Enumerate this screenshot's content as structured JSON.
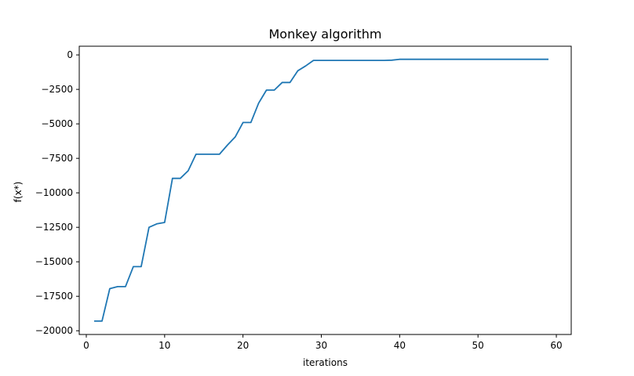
{
  "chart_data": {
    "type": "line",
    "title": "Monkey algorithm",
    "xlabel": "iterations",
    "ylabel": "f(x*)",
    "xlim": [
      -0.9,
      61.9
    ],
    "ylim": [
      -20270,
      630
    ],
    "xticks": [
      0,
      10,
      20,
      30,
      40,
      50,
      60
    ],
    "yticks": [
      0,
      -2500,
      -5000,
      -7500,
      -10000,
      -12500,
      -15000,
      -17500,
      -20000
    ],
    "xtick_labels": [
      "0",
      "10",
      "20",
      "30",
      "40",
      "50",
      "60"
    ],
    "ytick_labels": [
      "0",
      "−2500",
      "−5000",
      "−7500",
      "−10000",
      "−12500",
      "−15000",
      "−17500",
      "−20000"
    ],
    "grid": false,
    "series": [
      {
        "color": "#1f77b4",
        "x": [
          1,
          2,
          3,
          4,
          5,
          6,
          7,
          8,
          9,
          10,
          11,
          12,
          13,
          14,
          15,
          16,
          17,
          18,
          19,
          20,
          21,
          22,
          23,
          24,
          25,
          26,
          27,
          28,
          29,
          30,
          31,
          32,
          33,
          34,
          35,
          36,
          37,
          38,
          39,
          40,
          41,
          42,
          43,
          44,
          45,
          46,
          47,
          48,
          49,
          50,
          51,
          52,
          53,
          54,
          55,
          56,
          57,
          58,
          59
        ],
        "y": [
          -19300,
          -19300,
          -16950,
          -16800,
          -16800,
          -15350,
          -15350,
          -12500,
          -12250,
          -12150,
          -8950,
          -8950,
          -8400,
          -7200,
          -7200,
          -7200,
          -7200,
          -6550,
          -5950,
          -4900,
          -4900,
          -3500,
          -2550,
          -2550,
          -2000,
          -2000,
          -1150,
          -800,
          -400,
          -400,
          -400,
          -400,
          -400,
          -400,
          -400,
          -400,
          -400,
          -400,
          -380,
          -320,
          -320,
          -320,
          -320,
          -320,
          -320,
          -320,
          -320,
          -320,
          -320,
          -320,
          -320,
          -320,
          -320,
          -320,
          -320,
          -320,
          -320,
          -320,
          -320
        ]
      }
    ]
  }
}
